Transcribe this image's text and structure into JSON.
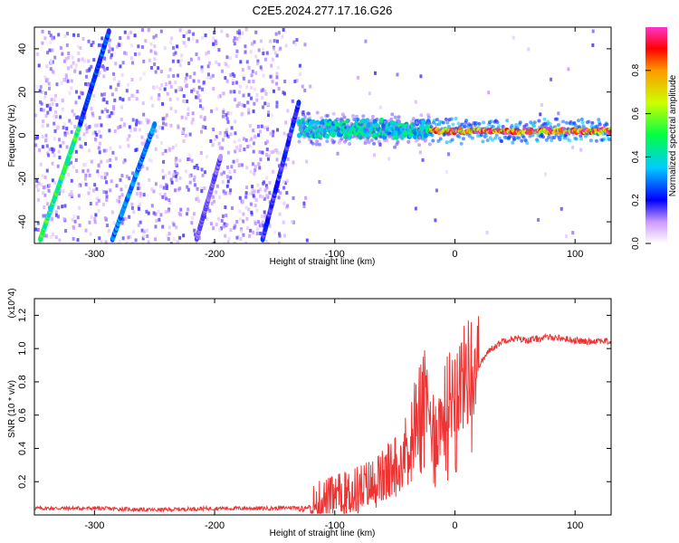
{
  "title": "C2E5.2024.277.17.16.G26",
  "chart_data": [
    {
      "type": "heatmap",
      "xlabel": "Height of straight line (km)",
      "ylabel": "Frequency (Hz)",
      "xlim": [
        -350,
        130
      ],
      "ylim": [
        -50,
        50
      ],
      "xticks": [
        -300,
        -200,
        -100,
        0,
        100
      ],
      "yticks": [
        -40,
        -20,
        0,
        20,
        40
      ],
      "colorbar": {
        "label": "Normalized spectral amplitude",
        "range": [
          0,
          1
        ],
        "ticks": [
          0.0,
          0.2,
          0.4,
          0.6,
          0.8
        ],
        "tick_labels": [
          "0.0",
          "0.2",
          "0.4",
          "0.6",
          "0.8"
        ]
      },
      "features": [
        {
          "kind": "diagonal_streak",
          "from": [
            -345,
            -48
          ],
          "to": [
            -312,
            5
          ],
          "amplitude": 0.5
        },
        {
          "kind": "diagonal_streak",
          "from": [
            -312,
            5
          ],
          "to": [
            -288,
            48
          ],
          "amplitude": 0.25
        },
        {
          "kind": "diagonal_streak",
          "from": [
            -285,
            -48
          ],
          "to": [
            -250,
            5
          ],
          "amplitude": 0.3
        },
        {
          "kind": "diagonal_streak",
          "from": [
            -215,
            -48
          ],
          "to": [
            -195,
            -10
          ],
          "amplitude": 0.15
        },
        {
          "kind": "diagonal_streak",
          "from": [
            -160,
            -48
          ],
          "to": [
            -130,
            15
          ],
          "amplitude": 0.2
        },
        {
          "kind": "horizontal_band",
          "x_range": [
            -130,
            -20
          ],
          "center_hz": 3,
          "amplitude": 0.45
        },
        {
          "kind": "horizontal_band",
          "x_range": [
            -20,
            130
          ],
          "center_hz": 2,
          "amplitude": 0.95
        }
      ]
    },
    {
      "type": "line",
      "xlabel": "Height of straight line (km)",
      "ylabel": "SNR (10 * v/v)",
      "y_multiplier": "(x10^4)",
      "xlim": [
        -350,
        130
      ],
      "ylim": [
        0,
        1.3
      ],
      "xticks": [
        -300,
        -200,
        -100,
        0,
        100
      ],
      "yticks": [
        0.2,
        0.4,
        0.6,
        0.8,
        1.0,
        1.2
      ],
      "ytick_labels": [
        "0.2",
        "0.4",
        "0.6",
        "0.8",
        "1.0",
        "1.2"
      ],
      "series": [
        {
          "color": "#ee3333",
          "x": [
            -350,
            -300,
            -250,
            -200,
            -150,
            -120,
            -110,
            -100,
            -90,
            -80,
            -70,
            -60,
            -50,
            -40,
            -35,
            -30,
            -25,
            -20,
            -15,
            -10,
            -5,
            0,
            5,
            10,
            15,
            20,
            25,
            30,
            35,
            40,
            50,
            60,
            70,
            80,
            90,
            100,
            110,
            120,
            130
          ],
          "y": [
            0.04,
            0.04,
            0.03,
            0.04,
            0.04,
            0.05,
            0.08,
            0.1,
            0.12,
            0.15,
            0.18,
            0.22,
            0.3,
            0.4,
            0.55,
            0.65,
            0.7,
            0.55,
            0.5,
            0.6,
            0.7,
            0.78,
            0.8,
            0.85,
            0.9,
            0.9,
            0.95,
            1.0,
            1.02,
            1.05,
            1.06,
            1.05,
            1.06,
            1.07,
            1.06,
            1.05,
            1.04,
            1.05,
            1.04
          ]
        }
      ]
    }
  ]
}
